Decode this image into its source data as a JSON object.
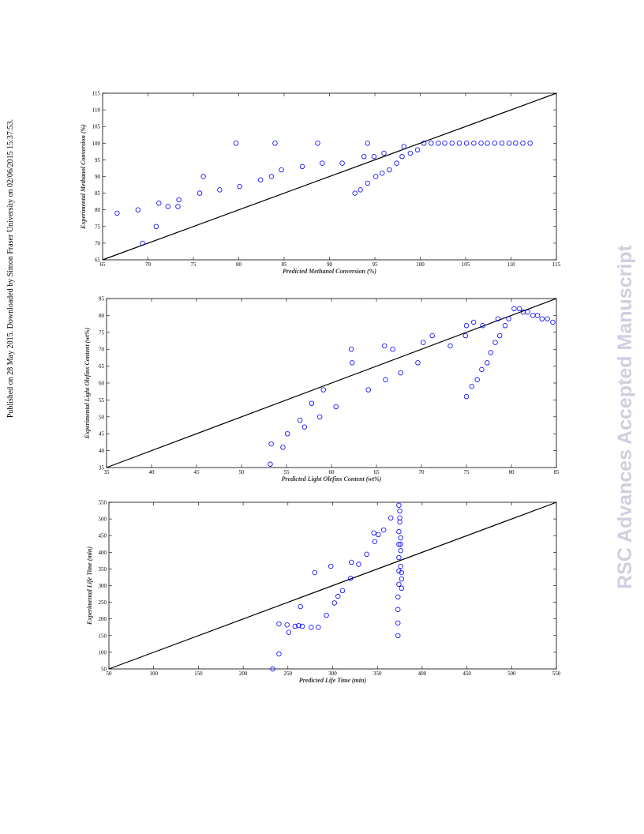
{
  "side_note": "Published on 28 May 2015. Downloaded by Simon Fraser University on 02/06/2015 15:37:53.",
  "watermark": "RSC Advances Accepted Manuscript",
  "chart_data": [
    {
      "type": "scatter",
      "x_label": "Predicted Methanol Conversion (%)",
      "y_label": "Experimental Methanol Conversion (%)",
      "color": "#0000ff",
      "x": [
        66.6,
        68.9,
        69.4,
        70.9,
        71.2,
        72.2,
        73.3,
        73.4,
        75.7,
        76.1,
        77.9,
        79.7,
        80.1,
        82.4,
        83.6,
        84,
        84.7,
        87,
        88.7,
        89.2,
        91.4,
        92.8,
        93.4,
        93.8,
        94.2,
        94.2,
        94.9,
        95.1,
        95.8,
        96,
        96.6,
        97.4,
        98,
        98.2,
        98.9,
        99.7,
        100.4,
        101.2,
        102,
        102.7,
        103.5,
        104.3,
        105.1,
        105.9,
        106.7,
        107.4,
        108.2,
        109,
        109.8,
        110.5,
        111.3,
        112.1
      ],
      "y": [
        79,
        80,
        70,
        75,
        82,
        81,
        81,
        83,
        85,
        90,
        86,
        100,
        87,
        89,
        90,
        100,
        92,
        93,
        100,
        94,
        94,
        85,
        86,
        96,
        100,
        88,
        96,
        90,
        91,
        97,
        92,
        94,
        96,
        99,
        97,
        98,
        100,
        100,
        100,
        100,
        100,
        100,
        100,
        100,
        100,
        100,
        100,
        100,
        100,
        100,
        100,
        100
      ],
      "xlim": [
        65,
        115
      ],
      "ylim": [
        65,
        115
      ],
      "xticks": [
        65,
        70,
        75,
        80,
        85,
        90,
        95,
        100,
        105,
        110,
        115
      ],
      "yticks": [
        65,
        70,
        75,
        80,
        85,
        90,
        95,
        100,
        105,
        110,
        115
      ]
    },
    {
      "type": "scatter",
      "x_label": "Predicted Light Olefins Content (wt%)",
      "y_label": "Experimental Light Olefins Content (wt%)",
      "color": "#0000ff",
      "x": [
        53.2,
        53.3,
        54.6,
        55.1,
        56.5,
        57,
        57.8,
        58.7,
        59.1,
        60.5,
        62.2,
        62.3,
        64.1,
        65.9,
        66,
        66.8,
        67.7,
        69.6,
        70.2,
        71.2,
        73.2,
        74.9,
        75,
        75,
        75.6,
        75.8,
        76.2,
        76.7,
        76.8,
        77.3,
        77.7,
        78.2,
        78.5,
        78.7,
        79.3,
        79.7,
        80.3,
        80.9,
        81.3,
        81.8,
        82.4,
        82.9,
        83.4,
        84,
        84.6
      ],
      "y": [
        36,
        42,
        41,
        45,
        49,
        47,
        54,
        50,
        58,
        53,
        70,
        66,
        58,
        71,
        61,
        70,
        63,
        66,
        72,
        74,
        71,
        74,
        77,
        56,
        59,
        78,
        61,
        64,
        77,
        66,
        69,
        72,
        79,
        74,
        77,
        79,
        82,
        82,
        81,
        81,
        80,
        80,
        79,
        79,
        78
      ],
      "xlim": [
        35,
        85
      ],
      "ylim": [
        35,
        85
      ],
      "xticks": [
        35,
        40,
        45,
        50,
        55,
        60,
        65,
        70,
        75,
        80,
        85
      ],
      "yticks": [
        35,
        40,
        45,
        50,
        55,
        60,
        65,
        70,
        75,
        80,
        85
      ]
    },
    {
      "type": "scatter",
      "x_label": "Predicted Life Time (min)",
      "y_label": "Experimental Life Time (min)",
      "color": "#0000ff",
      "x": [
        233,
        240,
        240,
        249,
        251,
        258,
        262,
        264,
        266,
        276,
        280,
        284,
        293,
        298,
        302,
        306,
        311,
        320,
        321,
        329,
        338,
        346,
        347,
        351,
        357,
        365,
        373,
        373,
        373,
        373,
        374,
        374,
        374,
        374,
        374,
        374,
        375,
        375,
        375,
        376,
        376,
        376,
        376,
        377,
        377,
        377
      ],
      "y": [
        50,
        95,
        185,
        182,
        160,
        178,
        180,
        237,
        178,
        175,
        339,
        175,
        211,
        358,
        248,
        268,
        285,
        322,
        370,
        364,
        394,
        458,
        432,
        453,
        467,
        503,
        150,
        188,
        228,
        266,
        304,
        344,
        384,
        424,
        462,
        541,
        524,
        491,
        503,
        424,
        358,
        443,
        405,
        320,
        292,
        339
      ],
      "xlim": [
        50,
        550
      ],
      "ylim": [
        50,
        550
      ],
      "xticks": [
        50,
        100,
        150,
        200,
        250,
        300,
        350,
        400,
        450,
        500,
        550
      ],
      "yticks": [
        50,
        100,
        150,
        200,
        250,
        300,
        350,
        400,
        450,
        500,
        550
      ]
    }
  ]
}
